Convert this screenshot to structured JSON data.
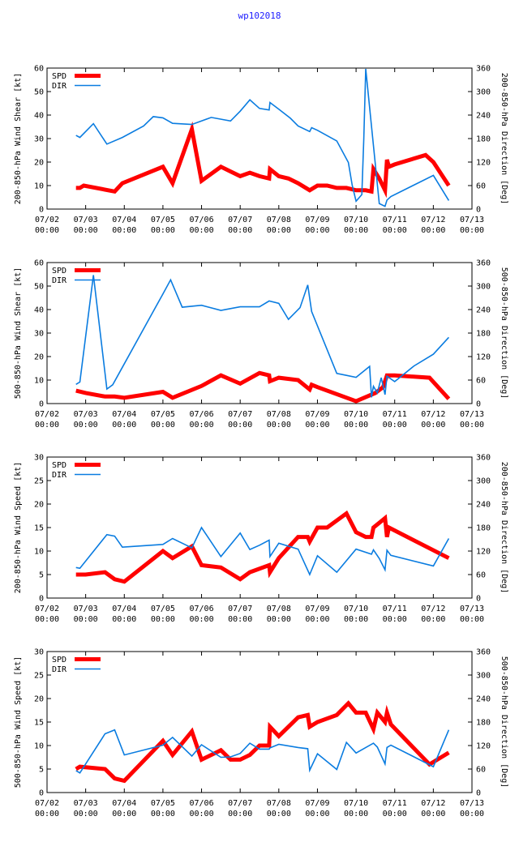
{
  "title": "wp102018",
  "colors": {
    "spd": "#ff0000",
    "dir": "#0a7ce0",
    "title": "#1a1aff"
  },
  "chart_data": [
    {
      "type": "line",
      "ylabel": "200-850-hPa Wind Shear [kt]",
      "y2label": "200-850-hPa Direction [Deg]",
      "xlim": [
        0,
        11
      ],
      "ylim": [
        0,
        60
      ],
      "y2lim": [
        0,
        360
      ],
      "xticks": [
        [
          "07/02",
          "00:00"
        ],
        [
          "07/03",
          "00:00"
        ],
        [
          "07/04",
          "00:00"
        ],
        [
          "07/05",
          "00:00"
        ],
        [
          "07/06",
          "00:00"
        ],
        [
          "07/07",
          "00:00"
        ],
        [
          "07/08",
          "00:00"
        ],
        [
          "07/09",
          "00:00"
        ],
        [
          "07/10",
          "00:00"
        ],
        [
          "07/11",
          "00:00"
        ],
        [
          "07/12",
          "00:00"
        ],
        [
          "07/13",
          "00:00"
        ]
      ],
      "yticks": [
        "0",
        "10",
        "20",
        "30",
        "40",
        "50",
        "60"
      ],
      "y2ticks": [
        "0",
        "60",
        "120",
        "180",
        "240",
        "300",
        "360"
      ],
      "series": [
        {
          "name": "SPD",
          "axis": "y",
          "x": [
            0.75,
            0.85,
            0.95,
            1.75,
            1.95,
            3.0,
            3.25,
            3.75,
            4.0,
            4.5,
            4.75,
            5.0,
            5.25,
            5.5,
            5.75,
            5.77,
            6.0,
            6.25,
            6.5,
            6.8,
            7.0,
            7.25,
            7.5,
            7.75,
            8.0,
            8.25,
            8.4,
            8.45,
            8.6,
            8.75,
            8.8,
            8.85,
            9.0,
            9.8,
            10.0,
            10.4
          ],
          "values": [
            9,
            9,
            10,
            7.5,
            11,
            18,
            11,
            34,
            12,
            18,
            16,
            14,
            15.5,
            14,
            13,
            17,
            14,
            13,
            11,
            8,
            10,
            10,
            9,
            9,
            8,
            8,
            7.5,
            17,
            13,
            8,
            21,
            18,
            19,
            23,
            20,
            10
          ]
        },
        {
          "name": "DIR",
          "axis": "y2",
          "x": [
            0.75,
            0.85,
            1.2,
            1.55,
            1.95,
            2.5,
            2.75,
            3.0,
            3.25,
            3.75,
            4.25,
            4.75,
            5.0,
            5.25,
            5.5,
            5.75,
            5.77,
            6.0,
            6.3,
            6.5,
            6.8,
            6.85,
            7.0,
            7.5,
            7.8,
            7.9,
            8.0,
            8.15,
            8.2,
            8.25,
            8.6,
            8.75,
            8.8,
            8.9,
            10.0,
            10.4
          ],
          "values": [
            188,
            183,
            218,
            166,
            183,
            212,
            236,
            233,
            219,
            216,
            234,
            225,
            250,
            279,
            257,
            253,
            272,
            255,
            232,
            212,
            198,
            208,
            201,
            174,
            119,
            61,
            20,
            37,
            179,
            358,
            14,
            7,
            23,
            32,
            86,
            22
          ]
        }
      ]
    },
    {
      "type": "line",
      "ylabel": "500-850-hPa Wind Shear [kt]",
      "y2label": "500-850-hPa Direction [Deg]",
      "xlim": [
        0,
        11
      ],
      "ylim": [
        0,
        60
      ],
      "y2lim": [
        0,
        360
      ],
      "xticks": [
        [
          "07/02",
          "00:00"
        ],
        [
          "07/03",
          "00:00"
        ],
        [
          "07/04",
          "00:00"
        ],
        [
          "07/05",
          "00:00"
        ],
        [
          "07/06",
          "00:00"
        ],
        [
          "07/07",
          "00:00"
        ],
        [
          "07/08",
          "00:00"
        ],
        [
          "07/09",
          "00:00"
        ],
        [
          "07/10",
          "00:00"
        ],
        [
          "07/11",
          "00:00"
        ],
        [
          "07/12",
          "00:00"
        ],
        [
          "07/13",
          "00:00"
        ]
      ],
      "yticks": [
        "0",
        "10",
        "20",
        "30",
        "40",
        "50",
        "60"
      ],
      "y2ticks": [
        "0",
        "60",
        "120",
        "180",
        "240",
        "300",
        "360"
      ],
      "series": [
        {
          "name": "SPD",
          "axis": "y",
          "x": [
            0.75,
            1.0,
            1.5,
            1.75,
            2.0,
            3.0,
            3.25,
            4.0,
            4.5,
            5.0,
            5.5,
            5.75,
            5.77,
            6.0,
            6.5,
            6.8,
            6.85,
            7.0,
            8.0,
            8.5,
            8.7,
            8.8,
            9.0,
            9.9,
            10.4
          ],
          "values": [
            5.5,
            4.5,
            3,
            3,
            2.5,
            5,
            2.5,
            7.5,
            12,
            8.5,
            13,
            12,
            9.5,
            11,
            10,
            6,
            8,
            7,
            1,
            4.5,
            7,
            12,
            12,
            11,
            2
          ]
        },
        {
          "name": "DIR",
          "axis": "y2",
          "x": [
            0.75,
            0.85,
            1.2,
            1.55,
            1.7,
            3.0,
            3.2,
            3.5,
            4.0,
            4.5,
            5.0,
            5.5,
            5.75,
            6.0,
            6.25,
            6.55,
            6.75,
            6.85,
            7.5,
            7.75,
            8.0,
            8.35,
            8.4,
            8.45,
            8.55,
            8.65,
            8.75,
            8.8,
            9.0,
            9.5,
            10.0,
            10.4
          ],
          "values": [
            49,
            55,
            328,
            37,
            48,
            280,
            316,
            246,
            251,
            238,
            247,
            247,
            262,
            256,
            215,
            245,
            303,
            235,
            77,
            72,
            67,
            95,
            16,
            44,
            27,
            66,
            23,
            70,
            56,
            96,
            126,
            169
          ]
        }
      ]
    },
    {
      "type": "line",
      "ylabel": "200-850-hPa Wind Speed [kt]",
      "y2label": "200-850-hPa Direction [Deg]",
      "xlim": [
        0,
        11
      ],
      "ylim": [
        0,
        30
      ],
      "y2lim": [
        0,
        360
      ],
      "xticks": [
        [
          "07/02",
          "00:00"
        ],
        [
          "07/03",
          "00:00"
        ],
        [
          "07/04",
          "00:00"
        ],
        [
          "07/05",
          "00:00"
        ],
        [
          "07/06",
          "00:00"
        ],
        [
          "07/07",
          "00:00"
        ],
        [
          "07/08",
          "00:00"
        ],
        [
          "07/09",
          "00:00"
        ],
        [
          "07/10",
          "00:00"
        ],
        [
          "07/11",
          "00:00"
        ],
        [
          "07/12",
          "00:00"
        ],
        [
          "07/13",
          "00:00"
        ]
      ],
      "yticks": [
        "0",
        "5",
        "10",
        "15",
        "20",
        "25",
        "30"
      ],
      "y2ticks": [
        "0",
        "60",
        "120",
        "180",
        "240",
        "300",
        "360"
      ],
      "series": [
        {
          "name": "SPD",
          "axis": "y",
          "x": [
            0.75,
            1.0,
            1.5,
            1.75,
            2.0,
            3.0,
            3.25,
            3.75,
            4.0,
            4.5,
            5.0,
            5.25,
            5.75,
            5.77,
            6.0,
            6.5,
            6.75,
            6.8,
            7.0,
            7.25,
            7.75,
            8.0,
            8.25,
            8.4,
            8.45,
            8.75,
            8.8,
            8.85,
            10.4
          ],
          "values": [
            5,
            5,
            5.5,
            4,
            3.5,
            10,
            8.5,
            11,
            7,
            6.5,
            4,
            5.5,
            7,
            5.5,
            8.5,
            13,
            13,
            12,
            15,
            15,
            18,
            14,
            13,
            13,
            15,
            17,
            13,
            15,
            8.5
          ]
        },
        {
          "name": "DIR",
          "axis": "y2",
          "x": [
            0.75,
            0.85,
            1.55,
            1.75,
            1.95,
            3.0,
            3.25,
            3.75,
            4.0,
            4.5,
            5.0,
            5.25,
            5.5,
            5.75,
            5.77,
            6.0,
            6.5,
            6.8,
            7.0,
            7.5,
            8.0,
            8.4,
            8.45,
            8.6,
            8.75,
            8.8,
            8.9,
            10.0,
            10.4
          ],
          "values": [
            78,
            76,
            162,
            158,
            130,
            137,
            152,
            128,
            180,
            106,
            166,
            124,
            135,
            148,
            106,
            140,
            125,
            60,
            108,
            66,
            125,
            112,
            123,
            101,
            72,
            122,
            109,
            82,
            152
          ]
        }
      ]
    },
    {
      "type": "line",
      "ylabel": "500-850-hPa Wind Speed [kt]",
      "y2label": "500-850-hPa Direction [Deg]",
      "xlim": [
        0,
        11
      ],
      "ylim": [
        0,
        30
      ],
      "y2lim": [
        0,
        360
      ],
      "xticks": [
        [
          "07/02",
          "00:00"
        ],
        [
          "07/03",
          "00:00"
        ],
        [
          "07/04",
          "00:00"
        ],
        [
          "07/05",
          "00:00"
        ],
        [
          "07/06",
          "00:00"
        ],
        [
          "07/07",
          "00:00"
        ],
        [
          "07/08",
          "00:00"
        ],
        [
          "07/09",
          "00:00"
        ],
        [
          "07/10",
          "00:00"
        ],
        [
          "07/11",
          "00:00"
        ],
        [
          "07/12",
          "00:00"
        ],
        [
          "07/13",
          "00:00"
        ]
      ],
      "yticks": [
        "0",
        "5",
        "10",
        "15",
        "20",
        "25",
        "30"
      ],
      "y2ticks": [
        "0",
        "60",
        "120",
        "180",
        "240",
        "300",
        "360"
      ],
      "series": [
        {
          "name": "SPD",
          "axis": "y",
          "x": [
            0.75,
            0.85,
            1.5,
            1.75,
            2.0,
            3.0,
            3.25,
            3.75,
            4.0,
            4.5,
            4.75,
            5.0,
            5.25,
            5.5,
            5.75,
            5.77,
            6.0,
            6.25,
            6.5,
            6.75,
            6.8,
            7.0,
            7.5,
            7.8,
            8.0,
            8.25,
            8.45,
            8.55,
            8.75,
            8.8,
            8.9,
            9.9,
            10.4
          ],
          "values": [
            5,
            5.5,
            5,
            3,
            2.5,
            11,
            8,
            13,
            7,
            9,
            7,
            7,
            8,
            10,
            10,
            14,
            12,
            14,
            16,
            16.5,
            14,
            15,
            16.5,
            19,
            17,
            17,
            13.5,
            17,
            15,
            17,
            14.5,
            6,
            8.5
          ]
        },
        {
          "name": "DIR",
          "axis": "y2",
          "x": [
            0.75,
            0.85,
            1.5,
            1.75,
            2.0,
            3.0,
            3.25,
            3.75,
            4.0,
            4.5,
            4.75,
            5.0,
            5.25,
            5.5,
            5.75,
            5.77,
            6.0,
            6.5,
            6.75,
            6.8,
            7.0,
            7.5,
            7.75,
            8.0,
            8.45,
            8.55,
            8.75,
            8.8,
            8.9,
            10.0,
            10.4
          ],
          "values": [
            56,
            50,
            150,
            160,
            96,
            121,
            141,
            93,
            122,
            90,
            91,
            100,
            126,
            111,
            111,
            114,
            123,
            115,
            112,
            57,
            99,
            59,
            128,
            101,
            126,
            116,
            73,
            115,
            121,
            66,
            160
          ]
        }
      ]
    }
  ]
}
